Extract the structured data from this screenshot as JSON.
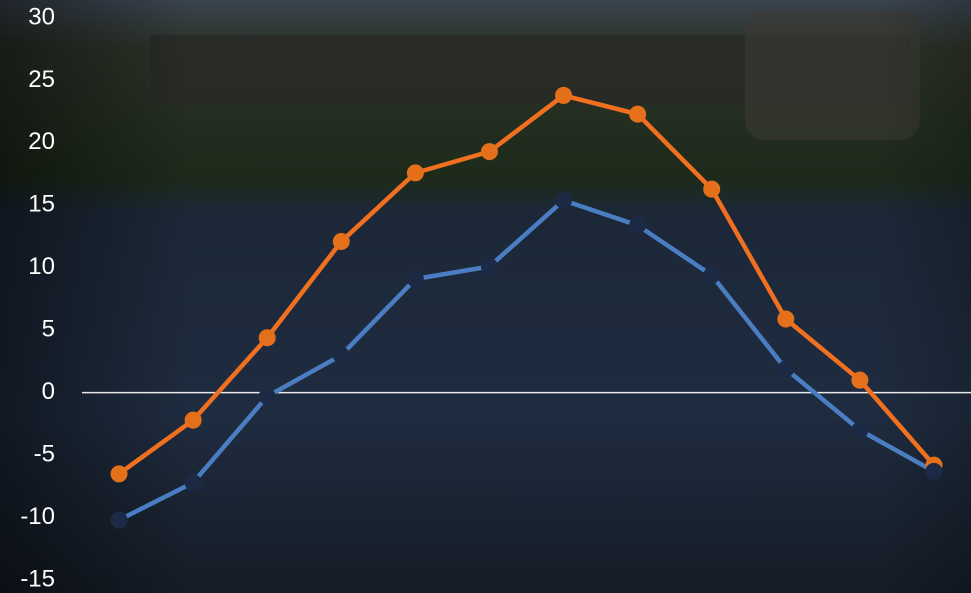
{
  "chart_data": {
    "type": "line",
    "categories": [
      null,
      null,
      null,
      null,
      null,
      null,
      null,
      null,
      null,
      null,
      null,
      null
    ],
    "series": [
      {
        "color": "#f07020",
        "marker_color": "#e5701c",
        "values": [
          -6.5,
          -2.2,
          4.4,
          12.1,
          17.6,
          19.3,
          23.8,
          22.3,
          16.3,
          5.9,
          1.0,
          -5.8
        ]
      },
      {
        "color": "#4a7dc2",
        "marker_color": "#1d2a45",
        "values": [
          -10.2,
          -7.2,
          -0.3,
          3.0,
          9.1,
          10.1,
          15.4,
          13.4,
          9.4,
          1.9,
          -3.0,
          -6.3
        ]
      }
    ],
    "ylim": [
      -15,
      30
    ],
    "yticks": [
      -15,
      -10,
      -5,
      0,
      5,
      10,
      15,
      20,
      25,
      30
    ],
    "zero_line": true
  }
}
